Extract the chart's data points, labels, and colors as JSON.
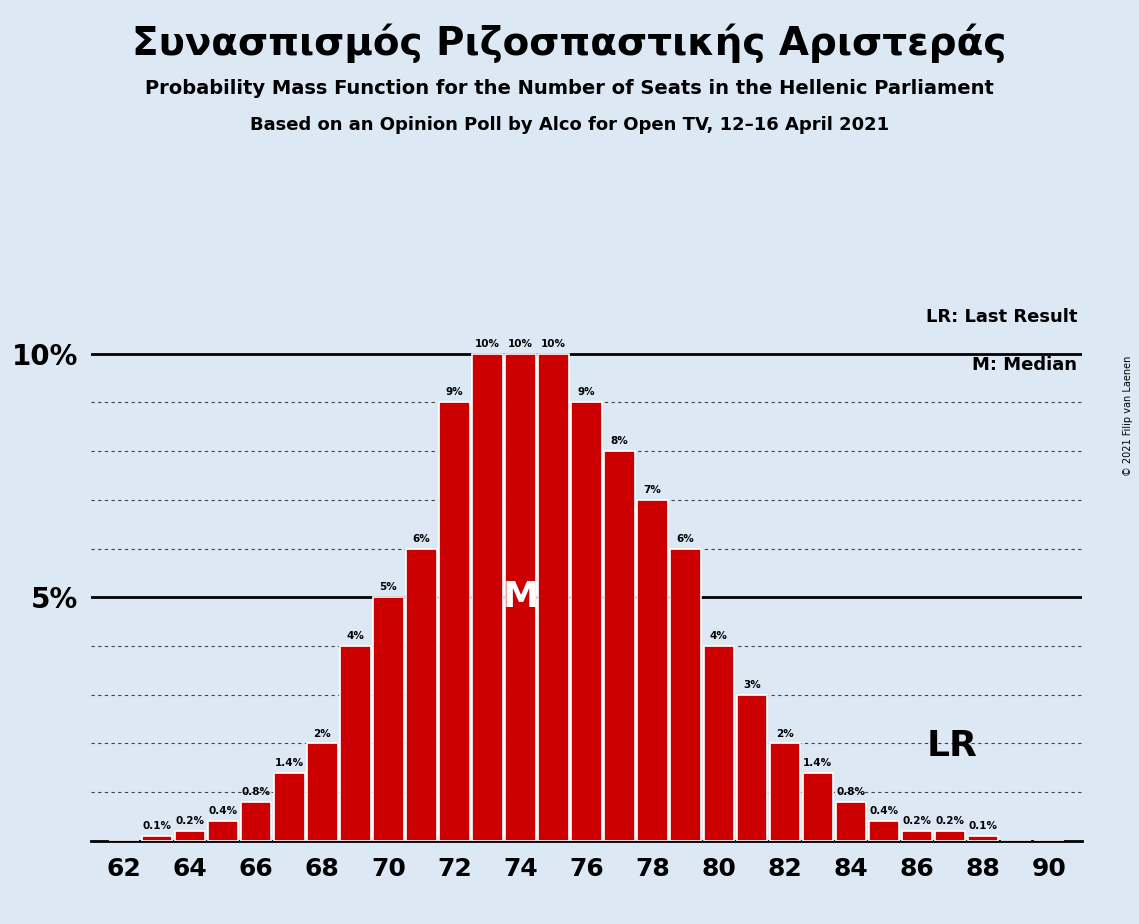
{
  "title_greek": "Συνασπισμός Ριζοσπαστικής Αριστεράς",
  "subtitle1": "Probability Mass Function for the Number of Seats in the Hellenic Parliament",
  "subtitle2": "Based on an Opinion Poll by Alco for Open TV, 12–16 April 2021",
  "copyright": "© 2021 Filip van Laenen",
  "legend_lr": "LR: Last Result",
  "legend_m": "M: Median",
  "bar_data": {
    "62": 0.0,
    "63": 0.1,
    "64": 0.2,
    "65": 0.4,
    "66": 0.8,
    "67": 1.4,
    "68": 2.0,
    "69": 4.0,
    "70": 5.0,
    "71": 6.0,
    "72": 9.0,
    "73": 10.0,
    "74": 10.0,
    "75": 10.0,
    "76": 9.0,
    "77": 8.0,
    "78": 7.0,
    "79": 6.0,
    "80": 4.0,
    "81": 3.0,
    "82": 2.0,
    "83": 1.4,
    "84": 0.8,
    "85": 0.4,
    "86": 0.2,
    "87": 0.2,
    "88": 0.1,
    "89": 0.0,
    "90": 0.0
  },
  "bar_color": "#cc0000",
  "bar_edge_color": "#ffffff",
  "background_color": "#dce9f5",
  "text_color": "#000000",
  "median_seat": 74,
  "lr_seat": 86,
  "ylim_max": 11.0
}
